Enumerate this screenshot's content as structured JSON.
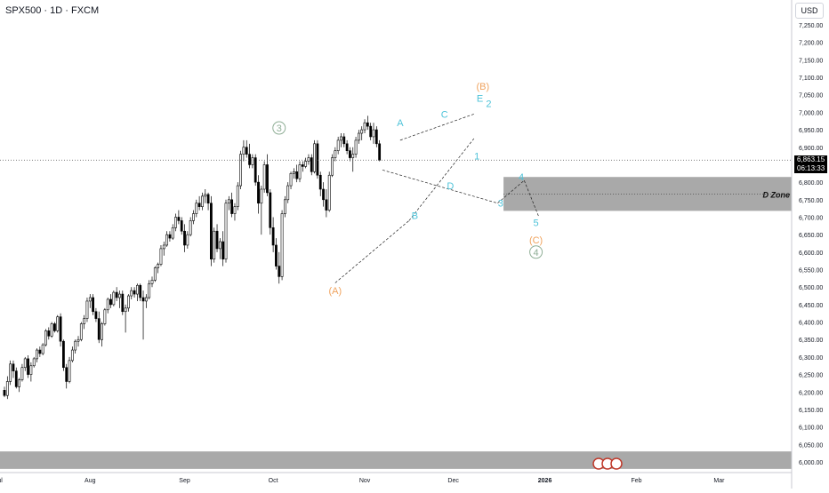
{
  "header": {
    "symbol": "SPX500 · 1D · FXCM",
    "currency": "USD"
  },
  "price_tag": {
    "price": "6,863.15",
    "countdown": "06:13:33"
  },
  "zone_label": "D Zone",
  "chart_data": {
    "type": "candlestick",
    "y_axis": {
      "ylim": [
        5980,
        7300
      ],
      "ticks": [
        "6,000.00",
        "6,050.00",
        "6,100.00",
        "6,150.00",
        "6,200.00",
        "6,250.00",
        "6,300.00",
        "6,350.00",
        "6,400.00",
        "6,450.00",
        "6,500.00",
        "6,550.00",
        "6,600.00",
        "6,650.00",
        "6,700.00",
        "6,750.00",
        "6,800.00",
        "6,850.00",
        "6,900.00",
        "6,950.00",
        "7,000.00",
        "7,050.00",
        "7,100.00",
        "7,150.00",
        "7,200.00",
        "7,250.00"
      ]
    },
    "x_axis": {
      "ticks": [
        {
          "label": "Jul",
          "day": -2
        },
        {
          "label": "Aug",
          "day": 29
        },
        {
          "label": "Sep",
          "day": 61
        },
        {
          "label": "Oct",
          "day": 91
        },
        {
          "label": "Nov",
          "day": 122
        },
        {
          "label": "Dec",
          "day": 152
        },
        {
          "label": "2026",
          "day": 183
        },
        {
          "label": "Feb",
          "day": 214
        },
        {
          "label": "Mar",
          "day": 242
        }
      ]
    },
    "last_price": 6863.15,
    "zones": [
      {
        "name": "D Zone",
        "from": 6718,
        "to": 6815,
        "start_day": 169
      },
      {
        "name": "lower zone",
        "from": 5980,
        "to": 6030,
        "start_day": -2
      }
    ],
    "candles": [
      [
        0,
        6205,
        6215,
        6185,
        6190
      ],
      [
        1,
        6190,
        6245,
        6180,
        6230
      ],
      [
        2,
        6230,
        6290,
        6220,
        6280
      ],
      [
        3,
        6280,
        6290,
        6240,
        6260
      ],
      [
        4,
        6260,
        6270,
        6210,
        6215
      ],
      [
        5,
        6215,
        6240,
        6200,
        6235
      ],
      [
        6,
        6235,
        6280,
        6230,
        6270
      ],
      [
        7,
        6270,
        6300,
        6260,
        6295
      ],
      [
        8,
        6295,
        6305,
        6240,
        6250
      ],
      [
        9,
        6250,
        6285,
        6230,
        6275
      ],
      [
        10,
        6275,
        6300,
        6270,
        6295
      ],
      [
        11,
        6295,
        6325,
        6285,
        6320
      ],
      [
        12,
        6320,
        6330,
        6300,
        6310
      ],
      [
        13,
        6310,
        6340,
        6305,
        6335
      ],
      [
        14,
        6335,
        6380,
        6330,
        6375
      ],
      [
        15,
        6375,
        6385,
        6350,
        6360
      ],
      [
        16,
        6360,
        6400,
        6355,
        6395
      ],
      [
        17,
        6395,
        6400,
        6370,
        6375
      ],
      [
        18,
        6375,
        6420,
        6370,
        6415
      ],
      [
        19,
        6415,
        6425,
        6330,
        6345
      ],
      [
        20,
        6345,
        6350,
        6260,
        6270
      ],
      [
        21,
        6270,
        6280,
        6210,
        6230
      ],
      [
        22,
        6230,
        6300,
        6225,
        6290
      ],
      [
        23,
        6290,
        6330,
        6285,
        6320
      ],
      [
        24,
        6320,
        6350,
        6310,
        6345
      ],
      [
        25,
        6345,
        6360,
        6330,
        6350
      ],
      [
        26,
        6350,
        6400,
        6345,
        6395
      ],
      [
        27,
        6395,
        6420,
        6380,
        6410
      ],
      [
        28,
        6410,
        6470,
        6400,
        6460
      ],
      [
        29,
        6460,
        6480,
        6440,
        6470
      ],
      [
        30,
        6470,
        6480,
        6420,
        6430
      ],
      [
        31,
        6430,
        6440,
        6400,
        6410
      ],
      [
        32,
        6410,
        6430,
        6340,
        6350
      ],
      [
        33,
        6350,
        6400,
        6330,
        6395
      ],
      [
        34,
        6395,
        6440,
        6390,
        6435
      ],
      [
        35,
        6435,
        6470,
        6425,
        6465
      ],
      [
        36,
        6465,
        6480,
        6440,
        6450
      ],
      [
        37,
        6450,
        6490,
        6445,
        6485
      ],
      [
        38,
        6485,
        6500,
        6460,
        6470
      ],
      [
        39,
        6470,
        6490,
        6440,
        6480
      ],
      [
        40,
        6480,
        6490,
        6420,
        6430
      ],
      [
        41,
        6430,
        6450,
        6370,
        6440
      ],
      [
        42,
        6440,
        6480,
        6430,
        6475
      ],
      [
        43,
        6475,
        6500,
        6465,
        6490
      ],
      [
        44,
        6490,
        6500,
        6470,
        6480
      ],
      [
        45,
        6480,
        6510,
        6460,
        6505
      ],
      [
        46,
        6505,
        6510,
        6460,
        6470
      ],
      [
        47,
        6470,
        6490,
        6350,
        6460
      ],
      [
        48,
        6460,
        6480,
        6440,
        6470
      ],
      [
        49,
        6470,
        6520,
        6465,
        6510
      ],
      [
        50,
        6510,
        6530,
        6500,
        6520
      ],
      [
        51,
        6520,
        6560,
        6515,
        6555
      ],
      [
        52,
        6555,
        6570,
        6540,
        6565
      ],
      [
        53,
        6565,
        6620,
        6560,
        6610
      ],
      [
        54,
        6610,
        6630,
        6590,
        6620
      ],
      [
        55,
        6620,
        6660,
        6615,
        6650
      ],
      [
        56,
        6650,
        6660,
        6630,
        6640
      ],
      [
        57,
        6640,
        6680,
        6635,
        6670
      ],
      [
        58,
        6670,
        6710,
        6660,
        6700
      ],
      [
        59,
        6700,
        6720,
        6680,
        6690
      ],
      [
        60,
        6690,
        6700,
        6650,
        6660
      ],
      [
        61,
        6660,
        6680,
        6600,
        6620
      ],
      [
        62,
        6620,
        6660,
        6610,
        6650
      ],
      [
        63,
        6650,
        6700,
        6645,
        6690
      ],
      [
        64,
        6690,
        6720,
        6680,
        6710
      ],
      [
        65,
        6710,
        6750,
        6700,
        6740
      ],
      [
        66,
        6740,
        6760,
        6720,
        6730
      ],
      [
        67,
        6730,
        6770,
        6720,
        6760
      ],
      [
        68,
        6760,
        6780,
        6740,
        6765
      ],
      [
        69,
        6765,
        6770,
        6720,
        6740
      ],
      [
        70,
        6740,
        6760,
        6560,
        6580
      ],
      [
        71,
        6580,
        6670,
        6570,
        6660
      ],
      [
        72,
        6660,
        6680,
        6600,
        6610
      ],
      [
        73,
        6610,
        6640,
        6580,
        6630
      ],
      [
        74,
        6630,
        6660,
        6560,
        6580
      ],
      [
        75,
        6580,
        6750,
        6570,
        6740
      ],
      [
        76,
        6740,
        6760,
        6720,
        6750
      ],
      [
        77,
        6750,
        6770,
        6700,
        6710
      ],
      [
        78,
        6710,
        6740,
        6690,
        6730
      ],
      [
        79,
        6730,
        6800,
        6720,
        6790
      ],
      [
        80,
        6790,
        6890,
        6780,
        6880
      ],
      [
        81,
        6880,
        6920,
        6860,
        6900
      ],
      [
        82,
        6900,
        6920,
        6870,
        6880
      ],
      [
        83,
        6880,
        6910,
        6840,
        6850
      ],
      [
        84,
        6850,
        6880,
        6840,
        6870
      ],
      [
        85,
        6870,
        6880,
        6790,
        6800
      ],
      [
        86,
        6800,
        6820,
        6710,
        6740
      ],
      [
        87,
        6740,
        6790,
        6650,
        6780
      ],
      [
        88,
        6780,
        6860,
        6770,
        6850
      ],
      [
        89,
        6850,
        6880,
        6760,
        6770
      ],
      [
        90,
        6770,
        6780,
        6650,
        6670
      ],
      [
        91,
        6670,
        6700,
        6600,
        6620
      ],
      [
        92,
        6620,
        6640,
        6550,
        6560
      ],
      [
        93,
        6560,
        6600,
        6510,
        6530
      ],
      [
        94,
        6530,
        6720,
        6520,
        6710
      ],
      [
        95,
        6710,
        6760,
        6700,
        6750
      ],
      [
        96,
        6750,
        6800,
        6740,
        6790
      ],
      [
        97,
        6790,
        6830,
        6780,
        6825
      ],
      [
        98,
        6825,
        6840,
        6810,
        6830
      ],
      [
        99,
        6830,
        6850,
        6800,
        6810
      ],
      [
        100,
        6810,
        6860,
        6800,
        6850
      ],
      [
        101,
        6850,
        6860,
        6830,
        6845
      ],
      [
        102,
        6845,
        6870,
        6840,
        6860
      ],
      [
        103,
        6860,
        6880,
        6850,
        6870
      ],
      [
        104,
        6870,
        6880,
        6820,
        6830
      ],
      [
        105,
        6830,
        6920,
        6825,
        6910
      ],
      [
        106,
        6910,
        6920,
        6810,
        6820
      ],
      [
        107,
        6820,
        6830,
        6760,
        6780
      ],
      [
        108,
        6780,
        6800,
        6730,
        6750
      ],
      [
        109,
        6750,
        6780,
        6700,
        6720
      ],
      [
        110,
        6720,
        6830,
        6715,
        6820
      ],
      [
        111,
        6820,
        6880,
        6815,
        6870
      ],
      [
        112,
        6870,
        6900,
        6860,
        6890
      ],
      [
        113,
        6890,
        6930,
        6880,
        6920
      ],
      [
        114,
        6920,
        6940,
        6900,
        6930
      ],
      [
        115,
        6930,
        6940,
        6900,
        6910
      ],
      [
        116,
        6910,
        6920,
        6880,
        6890
      ],
      [
        117,
        6890,
        6900,
        6860,
        6870
      ],
      [
        118,
        6870,
        6900,
        6830,
        6880
      ],
      [
        119,
        6880,
        6930,
        6870,
        6920
      ],
      [
        120,
        6920,
        6950,
        6910,
        6940
      ],
      [
        121,
        6940,
        6960,
        6920,
        6950
      ],
      [
        122,
        6950,
        6980,
        6940,
        6970
      ],
      [
        123,
        6970,
        6990,
        6950,
        6960
      ],
      [
        124,
        6960,
        6970,
        6920,
        6930
      ],
      [
        125,
        6930,
        6970,
        6910,
        6950
      ],
      [
        126,
        6950,
        6960,
        6900,
        6910
      ],
      [
        127,
        6910,
        6920,
        6860,
        6863
      ]
    ],
    "wave_labels": [
      {
        "text": "3",
        "day": 93,
        "price": 6945,
        "color": "#8fae96",
        "circled": true
      },
      {
        "text": "(A)",
        "day": 112,
        "price": 6480,
        "color": "#f0a35e"
      },
      {
        "text": "A",
        "day": 134,
        "price": 6960,
        "color": "#4fc3d9"
      },
      {
        "text": "B",
        "day": 139,
        "price": 6695,
        "color": "#4fc3d9"
      },
      {
        "text": "C",
        "day": 149,
        "price": 6985,
        "color": "#4fc3d9"
      },
      {
        "text": "D",
        "day": 151,
        "price": 6780,
        "color": "#4fc3d9"
      },
      {
        "text": "(B)",
        "day": 162,
        "price": 7065,
        "color": "#f0a35e"
      },
      {
        "text": "E",
        "day": 161,
        "price": 7030,
        "color": "#4fc3d9"
      },
      {
        "text": "2",
        "day": 164,
        "price": 7015,
        "color": "#4fc3d9"
      },
      {
        "text": "1",
        "day": 160,
        "price": 6865,
        "color": "#4fc3d9"
      },
      {
        "text": "3",
        "day": 168,
        "price": 6730,
        "color": "#4fc3d9"
      },
      {
        "text": "4",
        "day": 175,
        "price": 6805,
        "color": "#4fc3d9"
      },
      {
        "text": "5",
        "day": 180,
        "price": 6675,
        "color": "#4fc3d9"
      },
      {
        "text": "(C)",
        "day": 180,
        "price": 6625,
        "color": "#f0a35e"
      },
      {
        "text": "4",
        "day": 180,
        "price": 6590,
        "color": "#8fae96",
        "circled": true
      }
    ],
    "wave_lines": [
      [
        [
          112,
          6512
        ],
        [
          137,
          6690
        ]
      ],
      [
        [
          137,
          6690
        ],
        [
          159,
          6925
        ]
      ],
      [
        [
          134,
          6920
        ],
        [
          159,
          6995
        ]
      ],
      [
        [
          128,
          6835
        ],
        [
          167,
          6740
        ]
      ],
      [
        [
          167,
          6740
        ],
        [
          176,
          6805
        ]
      ],
      [
        [
          176,
          6805
        ],
        [
          181,
          6700
        ]
      ]
    ]
  }
}
